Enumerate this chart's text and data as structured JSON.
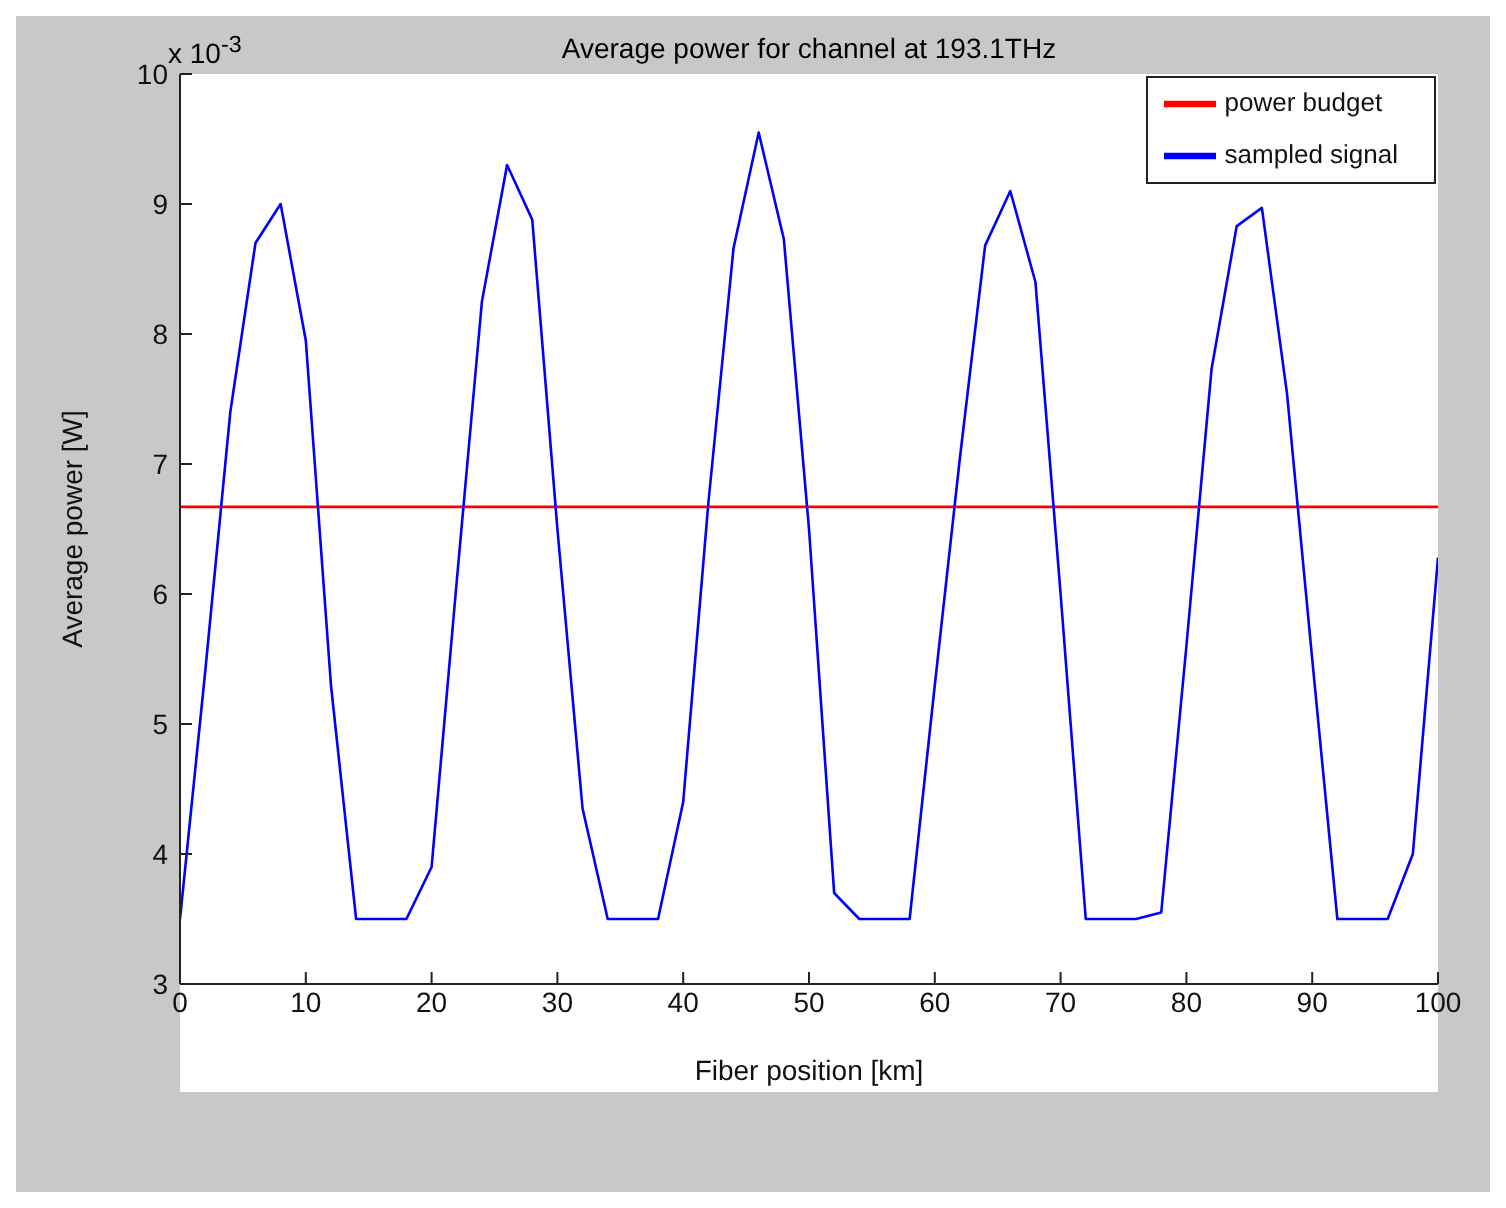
{
  "chart_data": {
    "type": "line",
    "title": "Average power for channel at 193.1THz",
    "xlabel": "Fiber position [km]",
    "ylabel": "Average power [W]",
    "annotations": [
      "x 10$^{-3}$"
    ],
    "series": [
      {
        "name": "power budget",
        "color": "#ff0000",
        "x": [
          0,
          100
        ],
        "values": [
          6.67,
          6.67
        ]
      },
      {
        "name": "sampled signal",
        "color": "#0000ff",
        "x": [
          0,
          2,
          4,
          6,
          8,
          10,
          12,
          14,
          16,
          18,
          20,
          22,
          24,
          26,
          28,
          30,
          32,
          34,
          36,
          38,
          40,
          42,
          44,
          46,
          48,
          50,
          52,
          54,
          56,
          58,
          60,
          62,
          64,
          66,
          68,
          70,
          72,
          74,
          76,
          78,
          80,
          82,
          84,
          86,
          88,
          90,
          92,
          94,
          96,
          98,
          100
        ],
        "values": [
          3.5,
          5.4,
          7.4,
          8.7,
          9.0,
          7.95,
          5.3,
          3.5,
          3.5,
          3.5,
          3.9,
          6.1,
          8.25,
          9.3,
          8.88,
          6.5,
          4.35,
          3.5,
          3.5,
          3.5,
          4.4,
          6.7,
          8.66,
          9.55,
          8.73,
          6.5,
          3.7,
          3.5,
          3.5,
          3.5,
          5.3,
          7.05,
          8.68,
          9.1,
          8.4,
          6.0,
          3.5,
          3.5,
          3.5,
          3.55,
          5.6,
          7.73,
          8.83,
          8.97,
          7.54,
          5.5,
          3.5,
          3.5,
          3.5,
          4.0,
          6.28
        ]
      }
    ],
    "xlim": [
      0,
      100
    ],
    "xticks": [
      0,
      10,
      20,
      30,
      40,
      50,
      60,
      70,
      80,
      90,
      100
    ],
    "ylim": [
      3,
      10
    ],
    "yticks": [
      3,
      4,
      5,
      6,
      7,
      8,
      9,
      10
    ],
    "legend": "top right",
    "marker": "none",
    "line_style": "solid"
  }
}
